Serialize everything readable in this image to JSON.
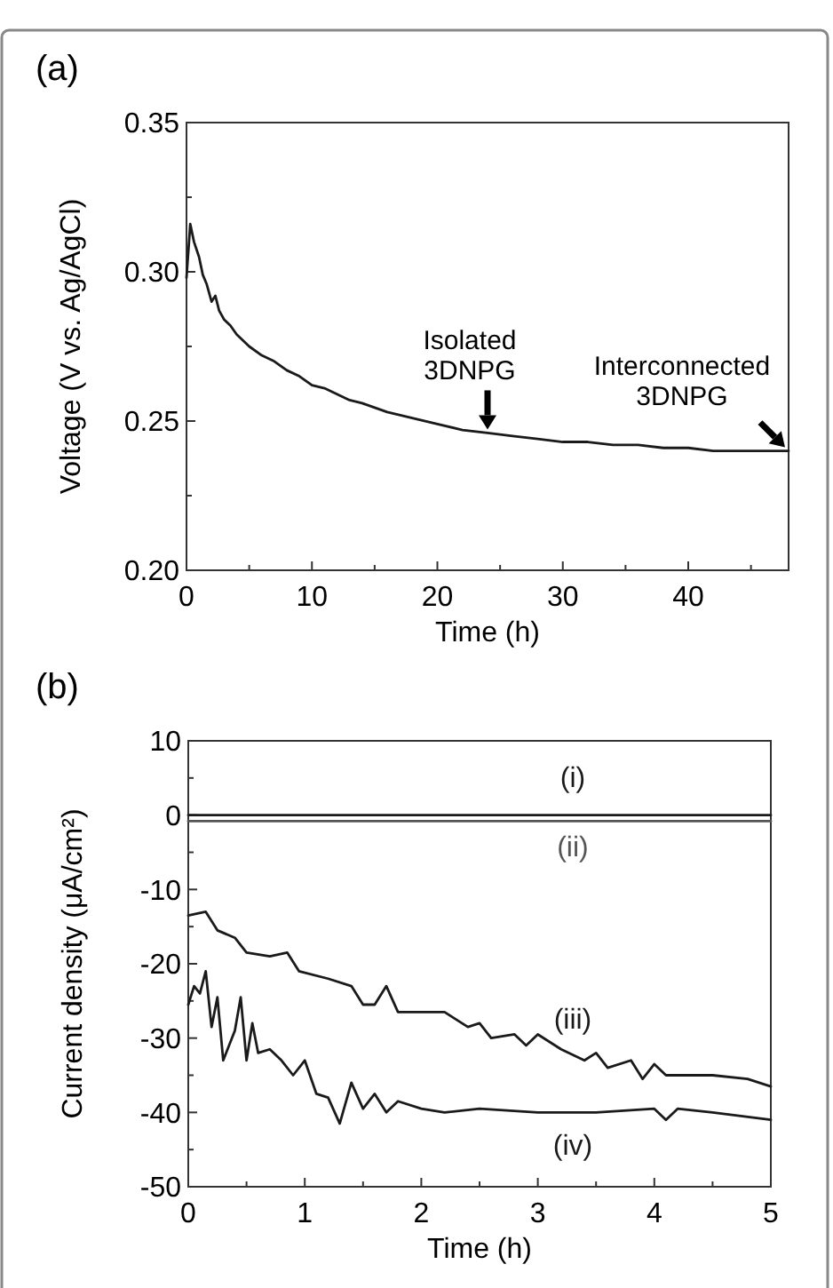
{
  "chart_data": [
    {
      "type": "line",
      "title": "(a)",
      "xlabel": "Time (h)",
      "ylabel": "Voltage (V vs. Ag/AgCl)",
      "xlim": [
        0,
        48
      ],
      "xticks": [
        0,
        10,
        20,
        30,
        40
      ],
      "ylim": [
        0.2,
        0.35
      ],
      "yticks": [
        {
          "value": 0.2,
          "label": "0.20"
        },
        0.25,
        {
          "value": 0.3,
          "label": "0.30"
        },
        0.35
      ],
      "series": [
        {
          "color": "#1a1a1a",
          "x": [
            0,
            0.3,
            0.6,
            1,
            1.3,
            1.6,
            2,
            2.3,
            2.6,
            3,
            3.5,
            4,
            5,
            6,
            7,
            8,
            9,
            10,
            11,
            12,
            13,
            14,
            16,
            18,
            20,
            22,
            24,
            26,
            28,
            30,
            32,
            34,
            36,
            38,
            40,
            42,
            44,
            46,
            48
          ],
          "values": [
            0.298,
            0.316,
            0.31,
            0.305,
            0.299,
            0.296,
            0.29,
            0.292,
            0.287,
            0.284,
            0.282,
            0.279,
            0.275,
            0.272,
            0.27,
            0.267,
            0.265,
            0.262,
            0.261,
            0.259,
            0.257,
            0.256,
            0.253,
            0.251,
            0.249,
            0.247,
            0.246,
            0.245,
            0.244,
            0.243,
            0.243,
            0.242,
            0.242,
            0.241,
            0.241,
            0.24,
            0.24,
            0.24,
            0.24
          ]
        }
      ],
      "annotations": [
        {
          "text": "Isolated\n3DNPG",
          "x": 24,
          "y": 0.246
        },
        {
          "text": "Interconnected\n3DNPG",
          "x": 48,
          "y": 0.24
        }
      ]
    },
    {
      "type": "line",
      "title": "(b)",
      "xlabel": "Time (h)",
      "ylabel": "Current density (μA/cm²)",
      "xlim": [
        0,
        5
      ],
      "xticks": [
        0,
        1,
        2,
        3,
        4,
        5
      ],
      "ylim": [
        -50,
        10
      ],
      "yticks": [
        -50,
        -40,
        -30,
        -20,
        -10,
        0,
        10
      ],
      "series": [
        {
          "name": "(i)",
          "color": "#1a1a1a",
          "x": [
            0,
            5
          ],
          "values": [
            0,
            0
          ]
        },
        {
          "name": "(ii)",
          "color": "#555555",
          "x": [
            0,
            5
          ],
          "values": [
            -0.8,
            -0.8
          ]
        },
        {
          "name": "(iii)",
          "color": "#1a1a1a",
          "x": [
            0,
            0.15,
            0.25,
            0.4,
            0.5,
            0.7,
            0.85,
            0.95,
            1.2,
            1.4,
            1.5,
            1.6,
            1.7,
            1.8,
            2,
            2.2,
            2.4,
            2.5,
            2.6,
            2.8,
            2.9,
            3,
            3.2,
            3.4,
            3.5,
            3.6,
            3.8,
            3.9,
            4,
            4.1,
            4.5,
            4.8,
            5
          ],
          "values": [
            -13.5,
            -13,
            -15.5,
            -16.5,
            -18.5,
            -19,
            -18.5,
            -21,
            -22,
            -23,
            -25.5,
            -25.5,
            -23,
            -26.5,
            -26.5,
            -26.5,
            -28.5,
            -28,
            -30,
            -29.5,
            -31,
            -29.5,
            -31.5,
            -33,
            -32,
            -34,
            -33,
            -35.5,
            -33.5,
            -35,
            -35,
            -35.5,
            -36.5
          ]
        },
        {
          "name": "(iv)",
          "color": "#1a1a1a",
          "x": [
            0,
            0.05,
            0.1,
            0.15,
            0.2,
            0.25,
            0.3,
            0.4,
            0.45,
            0.5,
            0.55,
            0.6,
            0.7,
            0.8,
            0.9,
            1,
            1.1,
            1.2,
            1.3,
            1.4,
            1.5,
            1.6,
            1.7,
            1.8,
            2,
            2.2,
            2.5,
            3,
            3.5,
            4,
            4.1,
            4.2,
            4.5,
            5
          ],
          "values": [
            -25.5,
            -23,
            -24,
            -21,
            -28.5,
            -24.5,
            -33,
            -29,
            -24.5,
            -33,
            -28,
            -32,
            -31.5,
            -33,
            -35,
            -33,
            -37.5,
            -38,
            -41.5,
            -36,
            -39.5,
            -37.5,
            -40,
            -38.5,
            -39.5,
            -40,
            -39.5,
            -40,
            -40,
            -39.5,
            -41,
            -39.5,
            -40,
            -41
          ]
        }
      ]
    }
  ]
}
